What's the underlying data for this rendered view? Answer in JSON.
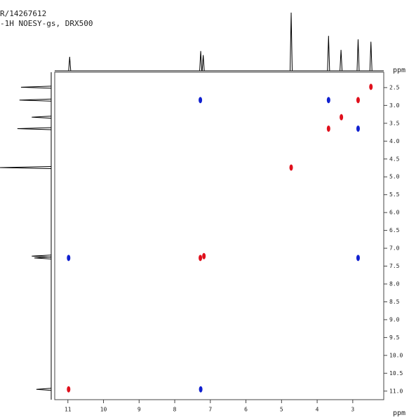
{
  "chart_data": {
    "type": "contour",
    "title": "R/14267612",
    "subtitle": "-1H NOESY-gs, DRX500",
    "xlabel": "ppm",
    "ylabel": "ppm",
    "xlim": [
      11.37,
      2.13
    ],
    "ylim": [
      2.07,
      11.24
    ],
    "xticks": [
      11,
      10,
      9,
      8,
      7,
      6,
      5,
      4,
      3
    ],
    "yticks": [
      2.5,
      {
        "value": 3,
        "label": "3.0"
      },
      3.5,
      {
        "value": 4,
        "label": "4.0"
      },
      4.5,
      {
        "value": 5,
        "label": "5.0"
      },
      5.5,
      {
        "value": 6,
        "label": "6.0"
      },
      6.5,
      {
        "value": 7,
        "label": "7.0"
      },
      7.5,
      {
        "value": 8,
        "label": "8.0"
      },
      8.5,
      {
        "value": 9,
        "label": "9.0"
      },
      9.5,
      {
        "value": 10,
        "label": "10.0"
      },
      10.5,
      {
        "value": 11,
        "label": "11.0"
      }
    ],
    "peaks": {
      "x": [
        2.49,
        7.28,
        3.68,
        2.85,
        3.32,
        3.68,
        2.85,
        4.73,
        10.98,
        7.28,
        7.18,
        2.85,
        10.98,
        7.27
      ],
      "y": [
        2.48,
        2.85,
        2.85,
        2.85,
        3.33,
        3.65,
        3.65,
        4.74,
        7.27,
        7.27,
        7.22,
        7.27,
        10.95,
        10.95
      ],
      "colors": [
        "#e0101c",
        "#1020d0",
        "#1020d0",
        "#e0101c",
        "#e0101c",
        "#e0101c",
        "#1020d0",
        "#e0101c",
        "#1020d0",
        "#e0101c",
        "#e0101c",
        "#1020d0",
        "#e0101c",
        "#1020d0"
      ]
    },
    "top_projection": {
      "x": [
        10.95,
        7.27,
        7.2,
        4.73,
        3.68,
        3.33,
        2.85,
        2.49
      ],
      "values": [
        24,
        34,
        27,
        100,
        60,
        36,
        54,
        50
      ]
    },
    "left_projection": {
      "y": [
        2.49,
        2.85,
        3.33,
        3.65,
        4.74,
        7.22,
        7.27,
        10.95
      ],
      "values": [
        59,
        62,
        38,
        66,
        100,
        38,
        33,
        29
      ]
    }
  }
}
